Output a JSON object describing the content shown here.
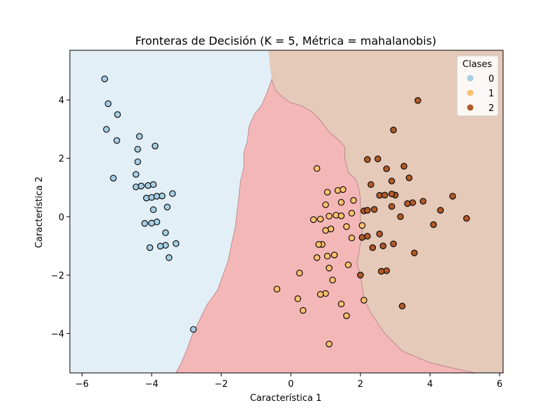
{
  "chart_data": {
    "type": "scatter",
    "title": "Fronteras de Decisión (K = 5, Métrica = mahalanobis)",
    "xlabel": "Característica 1",
    "ylabel": "Característica 2",
    "xlim": [
      -6.35,
      6.1
    ],
    "ylim": [
      -5.35,
      5.7
    ],
    "xticks": [
      -6,
      -4,
      -2,
      0,
      2,
      4,
      6
    ],
    "yticks": [
      -4,
      -2,
      0,
      2,
      4
    ],
    "xtick_labels": [
      "−6",
      "−4",
      "−2",
      "0",
      "2",
      "4",
      "6"
    ],
    "ytick_labels": [
      "−4",
      "−2",
      "0",
      "2",
      "4"
    ],
    "grid": false,
    "legend": {
      "title": "Clases",
      "placement": "top-right",
      "entries": [
        "0",
        "1",
        "2"
      ]
    },
    "regions": [
      {
        "class": "0",
        "color": "#e3eff6",
        "polygon": [
          [
            -6.35,
            5.7
          ],
          [
            -0.65,
            5.7
          ],
          [
            -0.6,
            5.2
          ],
          [
            -0.55,
            4.7
          ],
          [
            -0.7,
            4.2
          ],
          [
            -0.85,
            3.8
          ],
          [
            -1.05,
            3.5
          ],
          [
            -1.2,
            3.1
          ],
          [
            -1.25,
            2.6
          ],
          [
            -1.35,
            2.2
          ],
          [
            -1.35,
            1.7
          ],
          [
            -1.45,
            1.2
          ],
          [
            -1.5,
            0.6
          ],
          [
            -1.55,
            0.1
          ],
          [
            -1.6,
            -0.4
          ],
          [
            -1.7,
            -0.9
          ],
          [
            -1.8,
            -1.5
          ],
          [
            -1.95,
            -2.0
          ],
          [
            -2.1,
            -2.5
          ],
          [
            -2.4,
            -3.0
          ],
          [
            -2.65,
            -3.6
          ],
          [
            -2.85,
            -4.1
          ],
          [
            -3.0,
            -4.6
          ],
          [
            -3.15,
            -5.0
          ],
          [
            -3.3,
            -5.35
          ],
          [
            -6.35,
            -5.35
          ]
        ]
      },
      {
        "class": "1",
        "color": "#f4b7b8",
        "polygon": [
          [
            -0.55,
            4.7
          ],
          [
            -0.7,
            4.2
          ],
          [
            -0.85,
            3.8
          ],
          [
            -1.05,
            3.5
          ],
          [
            -1.2,
            3.1
          ],
          [
            -1.25,
            2.6
          ],
          [
            -1.35,
            2.2
          ],
          [
            -1.35,
            1.7
          ],
          [
            -1.45,
            1.2
          ],
          [
            -1.5,
            0.6
          ],
          [
            -1.55,
            0.1
          ],
          [
            -1.6,
            -0.4
          ],
          [
            -1.7,
            -0.9
          ],
          [
            -1.8,
            -1.5
          ],
          [
            -1.95,
            -2.0
          ],
          [
            -2.1,
            -2.5
          ],
          [
            -2.4,
            -3.0
          ],
          [
            -2.65,
            -3.6
          ],
          [
            -2.85,
            -4.1
          ],
          [
            -3.0,
            -4.6
          ],
          [
            -3.15,
            -5.0
          ],
          [
            -3.3,
            -5.35
          ],
          [
            5.3,
            -5.35
          ],
          [
            4.7,
            -5.2
          ],
          [
            4.0,
            -5.0
          ],
          [
            3.2,
            -4.6
          ],
          [
            2.7,
            -4.0
          ],
          [
            2.3,
            -3.3
          ],
          [
            2.1,
            -2.8
          ],
          [
            2.0,
            -2.0
          ],
          [
            1.9,
            -1.6
          ],
          [
            1.95,
            -1.3
          ],
          [
            2.0,
            -0.9
          ],
          [
            2.05,
            -0.5
          ],
          [
            2.0,
            -0.2
          ],
          [
            2.0,
            0.2
          ],
          [
            2.0,
            0.6
          ],
          [
            1.95,
            1.0
          ],
          [
            1.85,
            1.3
          ],
          [
            1.65,
            1.5
          ],
          [
            1.55,
            2.0
          ],
          [
            1.55,
            2.4
          ],
          [
            1.4,
            2.6
          ],
          [
            1.1,
            2.9
          ],
          [
            0.85,
            3.3
          ],
          [
            0.6,
            3.6
          ],
          [
            0.3,
            3.8
          ],
          [
            0.0,
            3.9
          ],
          [
            -0.25,
            4.1
          ],
          [
            -0.45,
            4.35
          ]
        ]
      },
      {
        "class": "2",
        "color": "#e5c9b9",
        "polygon": [
          [
            -0.65,
            5.7
          ],
          [
            6.1,
            5.7
          ],
          [
            6.1,
            -5.35
          ],
          [
            5.3,
            -5.35
          ],
          [
            4.7,
            -5.2
          ],
          [
            4.0,
            -5.0
          ],
          [
            3.2,
            -4.6
          ],
          [
            2.7,
            -4.0
          ],
          [
            2.3,
            -3.3
          ],
          [
            2.1,
            -2.8
          ],
          [
            2.0,
            -2.0
          ],
          [
            1.9,
            -1.6
          ],
          [
            1.95,
            -1.3
          ],
          [
            2.0,
            -0.9
          ],
          [
            2.05,
            -0.5
          ],
          [
            2.0,
            -0.2
          ],
          [
            2.0,
            0.2
          ],
          [
            2.0,
            0.6
          ],
          [
            1.95,
            1.0
          ],
          [
            1.85,
            1.3
          ],
          [
            1.65,
            1.5
          ],
          [
            1.55,
            2.0
          ],
          [
            1.55,
            2.4
          ],
          [
            1.4,
            2.6
          ],
          [
            1.1,
            2.9
          ],
          [
            0.85,
            3.3
          ],
          [
            0.6,
            3.6
          ],
          [
            0.3,
            3.8
          ],
          [
            0.0,
            3.9
          ],
          [
            -0.25,
            4.1
          ],
          [
            -0.45,
            4.35
          ],
          [
            -0.55,
            4.7
          ],
          [
            -0.6,
            5.2
          ]
        ]
      }
    ],
    "series": [
      {
        "name": "0",
        "color": "#a6cee3",
        "points": [
          [
            -5.35,
            4.72
          ],
          [
            -5.25,
            3.87
          ],
          [
            -4.98,
            3.5
          ],
          [
            -5.3,
            2.99
          ],
          [
            -5.0,
            2.61
          ],
          [
            -4.35,
            2.75
          ],
          [
            -4.4,
            2.31
          ],
          [
            -3.9,
            2.42
          ],
          [
            -4.4,
            1.88
          ],
          [
            -5.1,
            1.32
          ],
          [
            -4.45,
            1.45
          ],
          [
            -4.45,
            1.02
          ],
          [
            -4.3,
            1.05
          ],
          [
            -4.1,
            1.07
          ],
          [
            -3.95,
            1.1
          ],
          [
            -4.15,
            0.64
          ],
          [
            -4.0,
            0.66
          ],
          [
            -3.85,
            0.7
          ],
          [
            -3.7,
            0.71
          ],
          [
            -3.4,
            0.79
          ],
          [
            -3.55,
            0.33
          ],
          [
            -3.95,
            0.24
          ],
          [
            -3.85,
            -0.18
          ],
          [
            -4.0,
            -0.22
          ],
          [
            -4.2,
            -0.23
          ],
          [
            -3.6,
            -0.55
          ],
          [
            -3.3,
            -0.92
          ],
          [
            -3.6,
            -0.98
          ],
          [
            -3.75,
            -1.01
          ],
          [
            -4.05,
            -1.06
          ],
          [
            -3.5,
            -1.4
          ],
          [
            -2.8,
            -3.86
          ]
        ]
      },
      {
        "name": "1",
        "color": "#fdbf6f",
        "points": [
          [
            0.75,
            1.65
          ],
          [
            1.05,
            0.84
          ],
          [
            1.35,
            0.9
          ],
          [
            1.5,
            0.93
          ],
          [
            1.8,
            0.56
          ],
          [
            1.45,
            0.49
          ],
          [
            1.0,
            0.41
          ],
          [
            1.3,
            0.05
          ],
          [
            1.1,
            0.02
          ],
          [
            1.45,
            0.03
          ],
          [
            1.75,
            0.12
          ],
          [
            0.65,
            -0.1
          ],
          [
            0.85,
            -0.08
          ],
          [
            1.15,
            -0.42
          ],
          [
            1.0,
            -0.47
          ],
          [
            1.6,
            -0.34
          ],
          [
            1.75,
            -0.73
          ],
          [
            0.9,
            -0.95
          ],
          [
            0.8,
            -0.95
          ],
          [
            1.05,
            -1.35
          ],
          [
            1.25,
            -1.31
          ],
          [
            0.75,
            -1.4
          ],
          [
            1.1,
            -1.76
          ],
          [
            1.65,
            -1.65
          ],
          [
            2.05,
            -0.3
          ],
          [
            0.25,
            -1.93
          ],
          [
            1.2,
            -2.17
          ],
          [
            -0.4,
            -2.48
          ],
          [
            1.0,
            -2.63
          ],
          [
            0.85,
            -2.66
          ],
          [
            0.2,
            -2.81
          ],
          [
            1.45,
            -2.99
          ],
          [
            2.1,
            -2.86
          ],
          [
            0.35,
            -3.21
          ],
          [
            1.6,
            -3.39
          ],
          [
            1.1,
            -4.36
          ]
        ]
      },
      {
        "name": "2",
        "color": "#b15928",
        "points": [
          [
            3.65,
            3.98
          ],
          [
            2.95,
            2.97
          ],
          [
            2.2,
            1.96
          ],
          [
            2.5,
            1.98
          ],
          [
            2.75,
            1.64
          ],
          [
            3.25,
            1.73
          ],
          [
            3.4,
            1.33
          ],
          [
            2.9,
            1.22
          ],
          [
            2.3,
            1.1
          ],
          [
            3.0,
            0.74
          ],
          [
            2.55,
            0.73
          ],
          [
            2.7,
            0.74
          ],
          [
            2.9,
            0.78
          ],
          [
            3.8,
            0.53
          ],
          [
            3.5,
            0.48
          ],
          [
            3.35,
            0.45
          ],
          [
            4.65,
            0.7
          ],
          [
            2.9,
            0.35
          ],
          [
            3.15,
            0.0
          ],
          [
            2.4,
            0.25
          ],
          [
            2.1,
            0.2
          ],
          [
            2.2,
            0.22
          ],
          [
            4.3,
            0.22
          ],
          [
            5.05,
            -0.06
          ],
          [
            4.1,
            -0.27
          ],
          [
            2.55,
            -0.59
          ],
          [
            2.05,
            -0.71
          ],
          [
            2.2,
            -0.67
          ],
          [
            2.95,
            -0.93
          ],
          [
            2.65,
            -1.0
          ],
          [
            2.35,
            -1.06
          ],
          [
            3.55,
            -1.24
          ],
          [
            2.75,
            -1.85
          ],
          [
            2.6,
            -1.87
          ],
          [
            2.0,
            -2.0
          ],
          [
            3.2,
            -3.06
          ]
        ]
      }
    ]
  }
}
